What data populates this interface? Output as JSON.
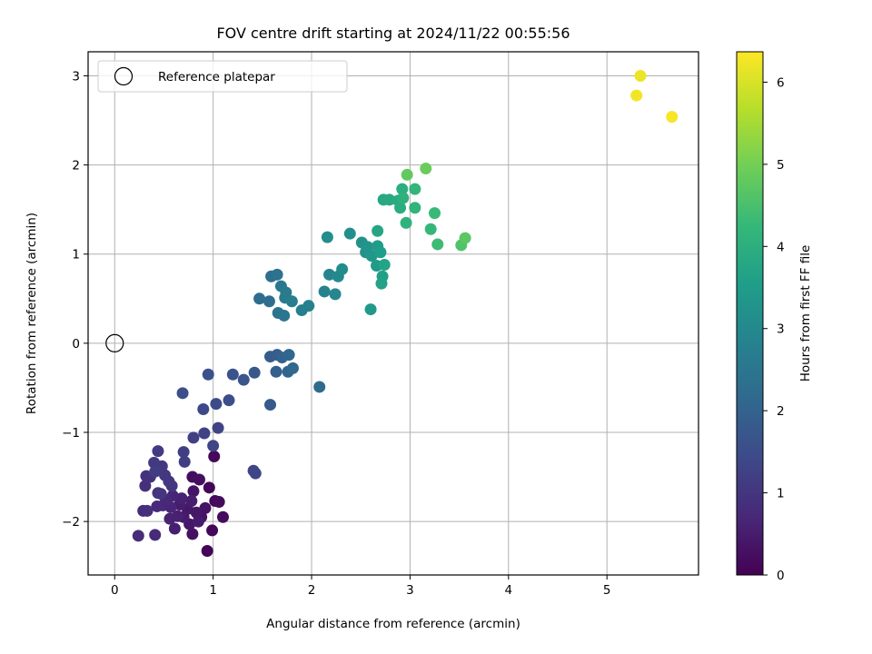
{
  "chart_data": {
    "type": "scatter",
    "title": "FOV centre drift starting at 2024/11/22 00:55:56",
    "xlabel": "Angular distance from reference (arcmin)",
    "ylabel": "Rotation from reference (arcmin)",
    "xlim": [
      -0.27,
      5.93
    ],
    "ylim": [
      -2.6,
      3.27
    ],
    "xticks": [
      0,
      1,
      2,
      3,
      4,
      5
    ],
    "yticks": [
      -2,
      -1,
      0,
      1,
      2,
      3
    ],
    "grid": true,
    "legend": {
      "placement": "upper-left",
      "entries": [
        {
          "label": "Reference platepar",
          "marker": "open-circle",
          "x": 0,
          "y": 0
        }
      ]
    },
    "colorbar": {
      "label": "Hours from first FF file",
      "colormap": "viridis",
      "range": [
        0,
        6.37
      ],
      "ticks": [
        0,
        1,
        2,
        3,
        4,
        5,
        6
      ]
    },
    "colormap_colors": [
      "#440154",
      "#482878",
      "#3e4989",
      "#31688e",
      "#26828e",
      "#1f9e89",
      "#35b779",
      "#6ece58",
      "#b5de2b",
      "#fde725"
    ],
    "points": [
      {
        "x": 0.94,
        "y": -2.33,
        "c": 0.05
      },
      {
        "x": 0.96,
        "y": -1.62,
        "c": 0.08
      },
      {
        "x": 0.99,
        "y": -2.1,
        "c": 0.1
      },
      {
        "x": 1.01,
        "y": -1.27,
        "c": 0.12
      },
      {
        "x": 1.02,
        "y": -1.77,
        "c": 0.15
      },
      {
        "x": 1.06,
        "y": -1.78,
        "c": 0.18
      },
      {
        "x": 1.1,
        "y": -1.95,
        "c": 0.2
      },
      {
        "x": 0.79,
        "y": -1.5,
        "c": 0.22
      },
      {
        "x": 0.86,
        "y": -1.53,
        "c": 0.25
      },
      {
        "x": 0.79,
        "y": -2.14,
        "c": 0.28
      },
      {
        "x": 0.88,
        "y": -1.95,
        "c": 0.3
      },
      {
        "x": 0.92,
        "y": -1.85,
        "c": 0.32
      },
      {
        "x": 0.8,
        "y": -1.66,
        "c": 0.35
      },
      {
        "x": 0.83,
        "y": -1.9,
        "c": 0.38
      },
      {
        "x": 0.76,
        "y": -2.03,
        "c": 0.4
      },
      {
        "x": 0.74,
        "y": -1.86,
        "c": 0.42
      },
      {
        "x": 0.7,
        "y": -1.95,
        "c": 0.45
      },
      {
        "x": 0.85,
        "y": -2.0,
        "c": 0.48
      },
      {
        "x": 0.78,
        "y": -1.77,
        "c": 0.5
      },
      {
        "x": 0.66,
        "y": -1.81,
        "c": 0.52
      },
      {
        "x": 0.61,
        "y": -2.08,
        "c": 0.55
      },
      {
        "x": 0.64,
        "y": -1.94,
        "c": 0.58
      },
      {
        "x": 0.68,
        "y": -1.74,
        "c": 0.6
      },
      {
        "x": 0.56,
        "y": -1.97,
        "c": 0.62
      },
      {
        "x": 0.57,
        "y": -1.84,
        "c": 0.65
      },
      {
        "x": 0.59,
        "y": -1.71,
        "c": 0.68
      },
      {
        "x": 0.52,
        "y": -1.76,
        "c": 0.7
      },
      {
        "x": 0.49,
        "y": -1.82,
        "c": 0.72
      },
      {
        "x": 0.43,
        "y": -1.83,
        "c": 0.75
      },
      {
        "x": 0.41,
        "y": -2.15,
        "c": 0.78
      },
      {
        "x": 0.24,
        "y": -2.16,
        "c": 0.8
      },
      {
        "x": 0.29,
        "y": -1.88,
        "c": 0.82
      },
      {
        "x": 0.33,
        "y": -1.88,
        "c": 0.85
      },
      {
        "x": 0.31,
        "y": -1.6,
        "c": 0.88
      },
      {
        "x": 0.32,
        "y": -1.49,
        "c": 0.9
      },
      {
        "x": 0.36,
        "y": -1.5,
        "c": 0.92
      },
      {
        "x": 0.44,
        "y": -1.68,
        "c": 0.95
      },
      {
        "x": 0.47,
        "y": -1.69,
        "c": 0.98
      },
      {
        "x": 0.51,
        "y": -1.48,
        "c": 1.0
      },
      {
        "x": 0.58,
        "y": -1.6,
        "c": 1.02
      },
      {
        "x": 0.55,
        "y": -1.55,
        "c": 1.05
      },
      {
        "x": 0.48,
        "y": -1.38,
        "c": 1.08
      },
      {
        "x": 0.4,
        "y": -1.34,
        "c": 1.1
      },
      {
        "x": 0.44,
        "y": -1.21,
        "c": 1.12
      },
      {
        "x": 0.41,
        "y": -1.44,
        "c": 1.15
      },
      {
        "x": 0.71,
        "y": -1.33,
        "c": 1.18
      },
      {
        "x": 0.7,
        "y": -1.22,
        "c": 1.2
      },
      {
        "x": 0.8,
        "y": -1.06,
        "c": 1.22
      },
      {
        "x": 0.91,
        "y": -1.01,
        "c": 1.25
      },
      {
        "x": 1.0,
        "y": -1.15,
        "c": 1.28
      },
      {
        "x": 1.05,
        "y": -0.95,
        "c": 1.3
      },
      {
        "x": 1.41,
        "y": -1.43,
        "c": 1.32
      },
      {
        "x": 1.43,
        "y": -1.46,
        "c": 1.35
      },
      {
        "x": 0.9,
        "y": -0.74,
        "c": 1.4
      },
      {
        "x": 1.03,
        "y": -0.68,
        "c": 1.45
      },
      {
        "x": 1.16,
        "y": -0.64,
        "c": 1.5
      },
      {
        "x": 0.69,
        "y": -0.56,
        "c": 1.55
      },
      {
        "x": 0.95,
        "y": -0.35,
        "c": 1.6
      },
      {
        "x": 1.2,
        "y": -0.35,
        "c": 1.65
      },
      {
        "x": 1.31,
        "y": -0.41,
        "c": 1.7
      },
      {
        "x": 1.42,
        "y": -0.33,
        "c": 1.75
      },
      {
        "x": 1.58,
        "y": -0.69,
        "c": 1.8
      },
      {
        "x": 1.58,
        "y": -0.15,
        "c": 1.85
      },
      {
        "x": 1.65,
        "y": -0.13,
        "c": 1.9
      },
      {
        "x": 1.64,
        "y": -0.32,
        "c": 1.95
      },
      {
        "x": 1.7,
        "y": -0.16,
        "c": 2.0
      },
      {
        "x": 1.76,
        "y": -0.32,
        "c": 2.05
      },
      {
        "x": 1.77,
        "y": -0.13,
        "c": 2.1
      },
      {
        "x": 1.81,
        "y": -0.28,
        "c": 2.15
      },
      {
        "x": 2.08,
        "y": -0.49,
        "c": 2.2
      },
      {
        "x": 1.47,
        "y": 0.5,
        "c": 2.25
      },
      {
        "x": 1.57,
        "y": 0.47,
        "c": 2.3
      },
      {
        "x": 1.59,
        "y": 0.75,
        "c": 2.35
      },
      {
        "x": 1.65,
        "y": 0.77,
        "c": 2.4
      },
      {
        "x": 1.66,
        "y": 0.34,
        "c": 2.45
      },
      {
        "x": 1.72,
        "y": 0.31,
        "c": 2.5
      },
      {
        "x": 1.69,
        "y": 0.64,
        "c": 2.55
      },
      {
        "x": 1.74,
        "y": 0.57,
        "c": 2.6
      },
      {
        "x": 1.73,
        "y": 0.51,
        "c": 2.65
      },
      {
        "x": 1.8,
        "y": 0.47,
        "c": 2.7
      },
      {
        "x": 1.9,
        "y": 0.37,
        "c": 2.75
      },
      {
        "x": 1.97,
        "y": 0.42,
        "c": 2.8
      },
      {
        "x": 2.13,
        "y": 0.58,
        "c": 2.85
      },
      {
        "x": 2.18,
        "y": 0.77,
        "c": 2.9
      },
      {
        "x": 2.24,
        "y": 0.55,
        "c": 2.95
      },
      {
        "x": 2.27,
        "y": 0.75,
        "c": 3.0
      },
      {
        "x": 2.31,
        "y": 0.83,
        "c": 3.05
      },
      {
        "x": 2.16,
        "y": 1.19,
        "c": 3.1
      },
      {
        "x": 2.39,
        "y": 1.23,
        "c": 3.15
      },
      {
        "x": 2.51,
        "y": 1.13,
        "c": 3.2
      },
      {
        "x": 2.55,
        "y": 1.02,
        "c": 3.25
      },
      {
        "x": 2.57,
        "y": 1.08,
        "c": 3.3
      },
      {
        "x": 2.61,
        "y": 0.98,
        "c": 3.35
      },
      {
        "x": 2.6,
        "y": 0.38,
        "c": 3.4
      },
      {
        "x": 2.66,
        "y": 0.87,
        "c": 3.45
      },
      {
        "x": 2.67,
        "y": 1.09,
        "c": 3.5
      },
      {
        "x": 2.7,
        "y": 1.02,
        "c": 3.55
      },
      {
        "x": 2.72,
        "y": 0.75,
        "c": 3.6
      },
      {
        "x": 2.71,
        "y": 0.67,
        "c": 3.65
      },
      {
        "x": 2.74,
        "y": 0.88,
        "c": 3.7
      },
      {
        "x": 2.67,
        "y": 1.26,
        "c": 3.75
      },
      {
        "x": 2.73,
        "y": 1.61,
        "c": 3.8
      },
      {
        "x": 2.79,
        "y": 1.61,
        "c": 3.85
      },
      {
        "x": 2.88,
        "y": 1.6,
        "c": 3.9
      },
      {
        "x": 2.9,
        "y": 1.52,
        "c": 3.95
      },
      {
        "x": 2.92,
        "y": 1.73,
        "c": 4.0
      },
      {
        "x": 2.93,
        "y": 1.63,
        "c": 4.05
      },
      {
        "x": 2.96,
        "y": 1.35,
        "c": 4.1
      },
      {
        "x": 3.05,
        "y": 1.52,
        "c": 4.15
      },
      {
        "x": 3.05,
        "y": 1.73,
        "c": 4.2
      },
      {
        "x": 3.21,
        "y": 1.28,
        "c": 4.25
      },
      {
        "x": 3.25,
        "y": 1.46,
        "c": 4.3
      },
      {
        "x": 3.28,
        "y": 1.11,
        "c": 4.35
      },
      {
        "x": 3.52,
        "y": 1.1,
        "c": 4.6
      },
      {
        "x": 3.56,
        "y": 1.18,
        "c": 4.7
      },
      {
        "x": 2.97,
        "y": 1.89,
        "c": 4.8
      },
      {
        "x": 3.16,
        "y": 1.96,
        "c": 4.9
      },
      {
        "x": 5.34,
        "y": 3.0,
        "c": 6.2
      },
      {
        "x": 5.3,
        "y": 2.78,
        "c": 6.25
      },
      {
        "x": 5.66,
        "y": 2.54,
        "c": 6.3
      }
    ]
  }
}
